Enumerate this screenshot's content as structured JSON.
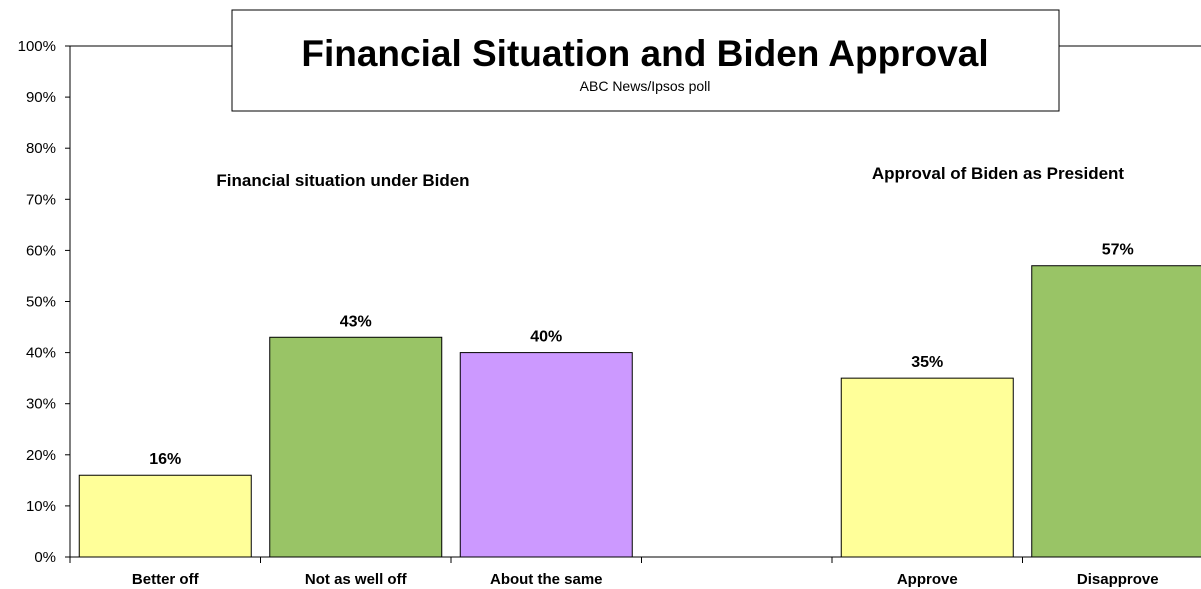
{
  "chart_data": {
    "type": "bar",
    "title": "Financial Situation and Biden Approval",
    "subtitle": "ABC News/Ipsos poll",
    "ylim": [
      0,
      100
    ],
    "ytick_step": 10,
    "ytick_suffix": "%",
    "grid": false,
    "groups": [
      {
        "label": "Financial situation under Biden",
        "categories": [
          "Better off",
          "Not as well off",
          "About the same"
        ],
        "values": [
          16,
          43,
          40
        ],
        "data_labels": [
          "16%",
          "43%",
          "40%"
        ],
        "colors": [
          "#ffff99",
          "#99c466",
          "#cc99ff"
        ]
      },
      {
        "label": "Approval of Biden as President",
        "categories": [
          "Approve",
          "Disapprove"
        ],
        "values": [
          35,
          57
        ],
        "data_labels": [
          "35%",
          "57%"
        ],
        "colors": [
          "#ffff99",
          "#99c466"
        ]
      }
    ]
  }
}
